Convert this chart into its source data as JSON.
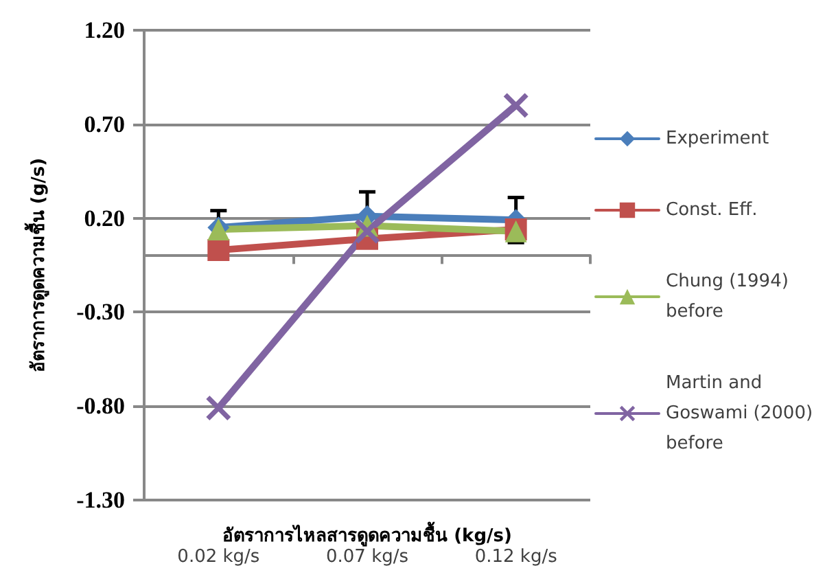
{
  "chart_data": {
    "type": "line",
    "xlabel": "อัตราการไหลสารดูดความชื้น (kg/s)",
    "ylabel": "อัตราการดูดความชื้น (g/s)",
    "categories": [
      "0.02 kg/s",
      "0.07 kg/s",
      "0.12 kg/s"
    ],
    "series": [
      {
        "name": "Experiment",
        "color": "#4a7ebb",
        "marker": "diamond",
        "values": [
          0.15,
          0.21,
          0.19
        ],
        "errors": [
          0.09,
          0.13,
          0.12
        ]
      },
      {
        "name": "Const. Eff.",
        "color": "#c0504d",
        "marker": "square",
        "values": [
          0.03,
          0.09,
          0.14
        ]
      },
      {
        "name": "Chung (1994) before",
        "color": "#9bbb59",
        "marker": "triangle",
        "values": [
          0.14,
          0.16,
          0.13
        ]
      },
      {
        "name": "Martin and Goswami (2000) before",
        "color": "#8064a2",
        "marker": "cross",
        "values": [
          -0.81,
          0.13,
          0.8
        ]
      }
    ],
    "ylim": [
      -1.3,
      1.2
    ],
    "yticks": [
      {
        "value": -1.3,
        "label": "-1.30"
      },
      {
        "value": -0.8,
        "label": "-0.80"
      },
      {
        "value": -0.3,
        "label": "-0.30"
      },
      {
        "value": 0.2,
        "label": "0.20"
      },
      {
        "value": 0.7,
        "label": "0.70"
      },
      {
        "value": 1.2,
        "label": "1.20"
      }
    ],
    "grid": "y",
    "legend": "right"
  }
}
